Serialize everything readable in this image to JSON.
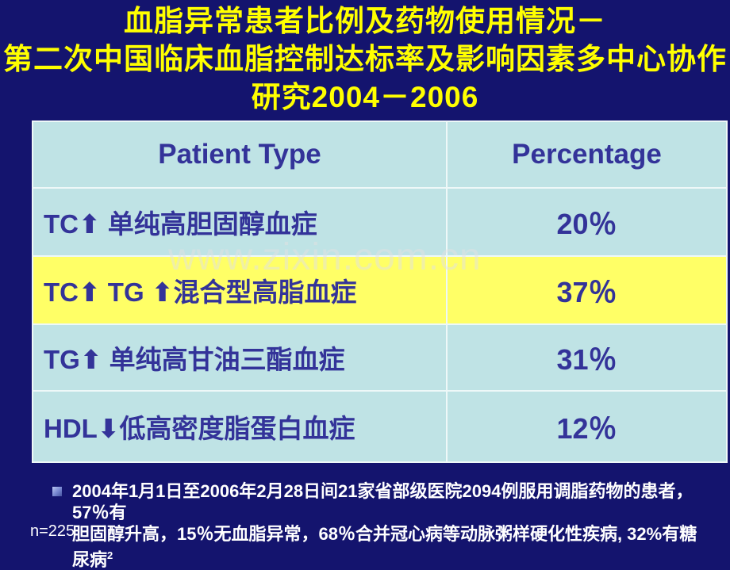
{
  "slide": {
    "title_lines": [
      "血脂异常患者比例及药物使用情况－",
      "第二次中国临床血脂控制达标率及影响因素多中心协作",
      "研究2004－2006"
    ]
  },
  "table": {
    "headers": {
      "patient_type": "Patient Type",
      "percentage": "Percentage"
    },
    "rows": [
      {
        "label": "TC⬆ 单纯高胆固醇血症",
        "value": "20％",
        "highlighted": false
      },
      {
        "label": "TC⬆ TG ⬆混合型高脂血症",
        "value": "37％",
        "highlighted": true
      },
      {
        "label": "TG⬆ 单纯高甘油三酯血症",
        "value": "31％",
        "highlighted": false
      },
      {
        "label": "HDL⬇低高密度脂蛋白血症",
        "value": "12％",
        "highlighted": false
      }
    ]
  },
  "watermark": "www.zixin.com.cn",
  "footnote": {
    "line1": "2004年1月1日至2006年2月28日间21家省部级医院2094例服用调脂药物的患者，57％有",
    "line2": "胆固醇升高，15％无血脂异常，68％合并冠心病等动脉粥样硬化性疾病, 32%有糖尿病",
    "superscript": "2"
  },
  "sample_size": "n=225",
  "colors": {
    "background": "#14146e",
    "title_yellow": "#ffff00",
    "table_teal": "#bfe3e5",
    "highlight_yellow": "#ffff66",
    "table_text": "#333399",
    "footnote_white": "#ffffff"
  }
}
